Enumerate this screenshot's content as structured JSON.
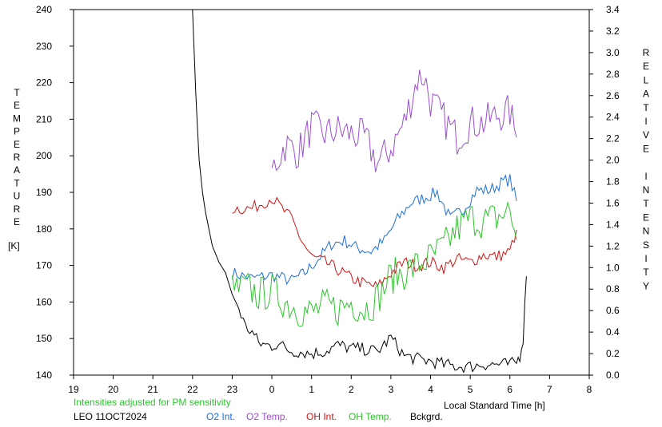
{
  "chart_data": {
    "type": "line",
    "left_axis": {
      "label": "TEMPERATURE",
      "unit": "[K]",
      "ylim": [
        140,
        240
      ],
      "ticks": [
        "140",
        "150",
        "160",
        "170",
        "180",
        "190",
        "200",
        "210",
        "220",
        "230",
        "240"
      ]
    },
    "right_axis": {
      "label": "RELATIVE INTENSITY",
      "ylim": [
        0.0,
        3.4
      ],
      "ticks": [
        "0.0",
        "0.2",
        "0.4",
        "0.6",
        "0.8",
        "1.0",
        "1.2",
        "1.4",
        "1.6",
        "1.8",
        "2.0",
        "2.2",
        "2.4",
        "2.6",
        "2.8",
        "3.0",
        "3.2",
        "3.4"
      ]
    },
    "x_axis": {
      "label": "Local Standard Time [h]",
      "ticks": [
        "19",
        "20",
        "21",
        "22",
        "23",
        "0",
        "1",
        "2",
        "3",
        "4",
        "5",
        "6",
        "7",
        "8"
      ]
    },
    "note": "Intensities adjusted for PM sensitivity",
    "station_date": "LEO 11OCT2024",
    "grid": false,
    "legend_position": "bottom",
    "series": [
      {
        "name": "O2 Int.",
        "axis": "right",
        "color": "#1e6fd9",
        "x": [
          "23:00",
          "23:30",
          "0:00",
          "0:30",
          "0:50",
          "1:10",
          "1:30",
          "1:50",
          "2:10",
          "2:30",
          "2:50",
          "3:10",
          "3:30",
          "3:50",
          "4:10",
          "4:30",
          "4:50",
          "5:10",
          "5:30",
          "5:50",
          "6:00",
          "6:10"
        ],
        "values": [
          0.95,
          0.9,
          0.93,
          0.88,
          0.95,
          1.08,
          1.22,
          1.25,
          1.18,
          1.15,
          1.25,
          1.45,
          1.6,
          1.65,
          1.7,
          1.45,
          1.55,
          1.72,
          1.72,
          1.8,
          1.82,
          1.62
        ]
      },
      {
        "name": "O2 Temp.",
        "axis": "left",
        "color": "#9b4fd1",
        "x": [
          "0:00",
          "0:20",
          "0:40",
          "1:00",
          "1:20",
          "1:40",
          "2:00",
          "2:20",
          "2:40",
          "3:00",
          "3:20",
          "3:40",
          "3:50",
          "4:00",
          "4:20",
          "4:40",
          "5:00",
          "5:20",
          "5:40",
          "6:00",
          "6:10"
        ],
        "values": [
          196,
          203,
          201,
          208,
          206,
          207,
          206,
          205,
          198,
          202,
          209,
          221,
          222,
          215,
          210,
          205,
          209,
          209,
          211,
          212,
          205
        ]
      },
      {
        "name": "OH Int.",
        "axis": "right",
        "color": "#d11414",
        "x": [
          "23:00",
          "23:30",
          "0:00",
          "0:15",
          "0:30",
          "0:45",
          "1:00",
          "1:20",
          "1:40",
          "2:00",
          "2:20",
          "2:40",
          "3:00",
          "3:20",
          "3:40",
          "4:00",
          "4:20",
          "4:40",
          "5:00",
          "5:20",
          "5:40",
          "6:00",
          "6:10"
        ],
        "values": [
          1.55,
          1.55,
          1.65,
          1.55,
          1.45,
          1.25,
          1.1,
          1.05,
          0.98,
          0.9,
          0.85,
          0.82,
          0.95,
          1.05,
          1.02,
          1.05,
          1.0,
          1.08,
          1.05,
          1.12,
          1.1,
          1.15,
          1.35
        ]
      },
      {
        "name": "OH Temp.",
        "axis": "left",
        "color": "#2cc52c",
        "x": [
          "23:00",
          "23:20",
          "23:40",
          "0:00",
          "0:20",
          "0:40",
          "1:00",
          "1:20",
          "1:40",
          "2:00",
          "2:20",
          "2:40",
          "3:00",
          "3:20",
          "3:40",
          "4:00",
          "4:20",
          "4:40",
          "5:00",
          "5:20",
          "5:40",
          "6:00",
          "6:10"
        ],
        "values": [
          163,
          164,
          162,
          163,
          160,
          158,
          157,
          159,
          158,
          160,
          158,
          161,
          167,
          168,
          170,
          172,
          175,
          180,
          183,
          182,
          183,
          185,
          177
        ]
      },
      {
        "name": "Bckgrd.",
        "axis": "right",
        "color": "#000000",
        "x": [
          "22:00",
          "22:05",
          "22:10",
          "22:15",
          "22:20",
          "22:25",
          "22:30",
          "22:40",
          "22:50",
          "23:00",
          "23:10",
          "23:20",
          "23:30",
          "23:40",
          "23:50",
          "0:00",
          "0:10",
          "0:20",
          "0:30",
          "0:40",
          "0:50",
          "1:00",
          "1:20",
          "1:40",
          "2:00",
          "2:20",
          "2:40",
          "3:00",
          "3:20",
          "3:40",
          "4:00",
          "4:20",
          "4:40",
          "5:00",
          "5:20",
          "5:40",
          "6:00",
          "6:10",
          "6:15",
          "6:20",
          "6:25"
        ],
        "values": [
          3.4,
          2.6,
          2.0,
          1.7,
          1.5,
          1.35,
          1.2,
          1.05,
          0.95,
          0.75,
          0.62,
          0.45,
          0.4,
          0.3,
          0.28,
          0.27,
          0.3,
          0.25,
          0.22,
          0.22,
          0.21,
          0.2,
          0.22,
          0.28,
          0.25,
          0.24,
          0.22,
          0.35,
          0.18,
          0.15,
          0.13,
          0.1,
          0.08,
          0.08,
          0.1,
          0.1,
          0.1,
          0.12,
          0.18,
          0.35,
          0.92
        ]
      }
    ]
  }
}
